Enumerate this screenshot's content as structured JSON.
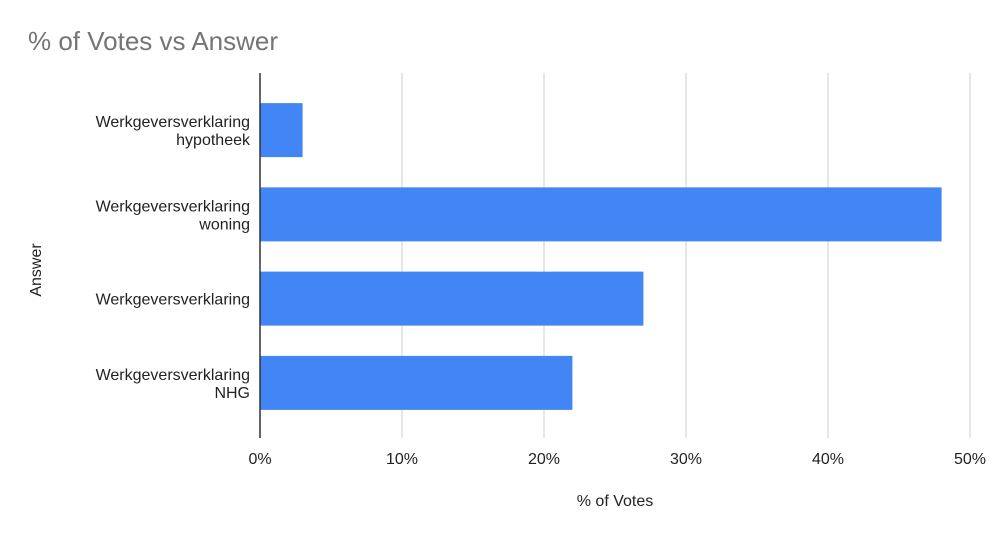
{
  "chart_data": {
    "type": "bar",
    "orientation": "horizontal",
    "title": "% of Votes vs Answer",
    "x_label": "% of Votes",
    "y_label": "Answer",
    "categories": [
      "Werkgeversverklaring\nhypotheek",
      "Werkgeversverklaring\nwoning",
      "Werkgeversverklaring",
      "Werkgeversverklaring\nNHG"
    ],
    "values": [
      3,
      48,
      27,
      22
    ],
    "color": "#4285f4",
    "xlim": [
      0,
      50
    ],
    "xticks": [
      {
        "value": 0,
        "label": "0%"
      },
      {
        "value": 10,
        "label": "10%"
      },
      {
        "value": 20,
        "label": "20%"
      },
      {
        "value": 30,
        "label": "30%"
      },
      {
        "value": 40,
        "label": "40%"
      },
      {
        "value": 50,
        "label": "50%"
      }
    ],
    "grid": true
  }
}
